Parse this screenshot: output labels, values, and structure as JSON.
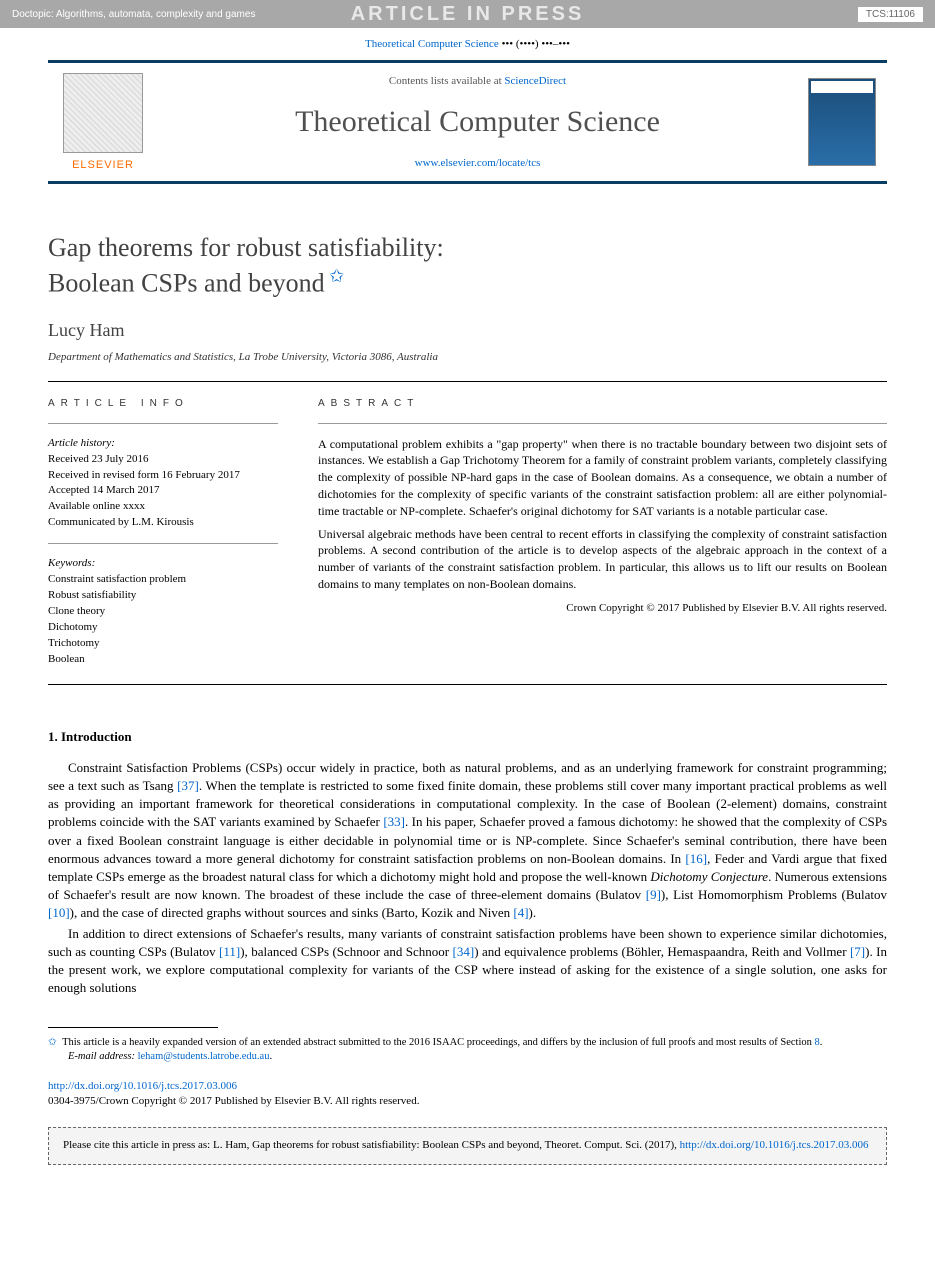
{
  "banner": {
    "doctopic": "Doctopic: Algorithms, automata, complexity and games",
    "aip": "ARTICLE IN PRESS",
    "tcs_id": "TCS:11106"
  },
  "journal_ref": {
    "text_prefix": "Theoretical Computer Science",
    "text_suffix": " ••• (••••) •••–•••"
  },
  "header": {
    "elsevier": "ELSEVIER",
    "contents_prefix": "Contents lists available at ",
    "sciencedirect": "ScienceDirect",
    "journal_title": "Theoretical Computer Science",
    "journal_url": "www.elsevier.com/locate/tcs"
  },
  "article": {
    "title_line1": "Gap theorems for robust satisfiability:",
    "title_line2": "Boolean CSPs and beyond",
    "author": "Lucy Ham",
    "affiliation": "Department of Mathematics and Statistics, La Trobe University, Victoria 3086, Australia"
  },
  "article_info": {
    "label": "ARTICLE INFO",
    "history_heading": "Article history:",
    "received": "Received 23 July 2016",
    "revised": "Received in revised form 16 February 2017",
    "accepted": "Accepted 14 March 2017",
    "online": "Available online xxxx",
    "communicated": "Communicated by L.M. Kirousis",
    "keywords_heading": "Keywords:",
    "keywords": [
      "Constraint satisfaction problem",
      "Robust satisfiability",
      "Clone theory",
      "Dichotomy",
      "Trichotomy",
      "Boolean"
    ]
  },
  "abstract": {
    "label": "ABSTRACT",
    "para1": "A computational problem exhibits a \"gap property\" when there is no tractable boundary between two disjoint sets of instances. We establish a Gap Trichotomy Theorem for a family of constraint problem variants, completely classifying the complexity of possible NP-hard gaps in the case of Boolean domains. As a consequence, we obtain a number of dichotomies for the complexity of specific variants of the constraint satisfaction problem: all are either polynomial-time tractable or NP-complete. Schaefer's original dichotomy for SAT variants is a notable particular case.",
    "para2": "Universal algebraic methods have been central to recent efforts in classifying the complexity of constraint satisfaction problems. A second contribution of the article is to develop aspects of the algebraic approach in the context of a number of variants of the constraint satisfaction problem. In particular, this allows us to lift our results on Boolean domains to many templates on non-Boolean domains.",
    "copyright": "Crown Copyright © 2017 Published by Elsevier B.V. All rights reserved."
  },
  "intro": {
    "heading": "1. Introduction",
    "para1_a": "Constraint Satisfaction Problems (CSPs) occur widely in practice, both as natural problems, and as an underlying framework for constraint programming; see a text such as Tsang ",
    "ref37": "[37]",
    "para1_b": ". When the template is restricted to some fixed finite domain, these problems still cover many important practical problems as well as providing an important framework for theoretical considerations in computational complexity. In the case of Boolean (2-element) domains, constraint problems coincide with the SAT variants examined by Schaefer ",
    "ref33": "[33]",
    "para1_c": ". In his paper, Schaefer proved a famous dichotomy: he showed that the complexity of CSPs over a fixed Boolean constraint language is either decidable in polynomial time or is NP-complete. Since Schaefer's seminal contribution, there have been enormous advances toward a more general dichotomy for constraint satisfaction problems on non-Boolean domains. In ",
    "ref16": "[16]",
    "para1_d": ", Feder and Vardi argue that fixed template CSPs emerge as the broadest natural class for which a dichotomy might hold and propose the well-known ",
    "dichotomy_conj": "Dichotomy Conjecture",
    "para1_e": ". Numerous extensions of Schaefer's result are now known. The broadest of these include the case of three-element domains (Bulatov ",
    "ref9": "[9]",
    "para1_f": "), List Homomorphism Problems (Bulatov ",
    "ref10": "[10]",
    "para1_g": "), and the case of directed graphs without sources and sinks (Barto, Kozik and Niven ",
    "ref4": "[4]",
    "para1_h": ").",
    "para2_a": "In addition to direct extensions of Schaefer's results, many variants of constraint satisfaction problems have been shown to experience similar dichotomies, such as counting CSPs (Bulatov ",
    "ref11": "[11]",
    "para2_b": "), balanced CSPs (Schnoor and Schnoor ",
    "ref34": "[34]",
    "para2_c": ") and equivalence problems (Böhler, Hemaspaandra, Reith and Vollmer ",
    "ref7": "[7]",
    "para2_d": "). In the present work, we explore computational complexity for variants of the CSP where instead of asking for the existence of a single solution, one asks for enough solutions"
  },
  "footnotes": {
    "note_text_a": "This article is a heavily expanded version of an extended abstract submitted to the 2016 ISAAC proceedings, and differs by the inclusion of full proofs and most results of Section ",
    "note_sec": "8",
    "note_tail": ".",
    "email_label": "E-mail address:",
    "email": "leham@students.latrobe.edu.au",
    "email_tail": "."
  },
  "doi": {
    "url": "http://dx.doi.org/10.1016/j.tcs.2017.03.006",
    "issn_line": "0304-3975/Crown Copyright © 2017 Published by Elsevier B.V. All rights reserved."
  },
  "citebox": {
    "text_a": "Please cite this article in press as: L. Ham, Gap theorems for robust satisfiability: Boolean CSPs and beyond, Theoret. Comput. Sci. (2017), ",
    "url": "http://dx.doi.org/10.1016/j.tcs.2017.03.006"
  },
  "colors": {
    "rule": "#0a3d62",
    "link": "#0066cc",
    "banner_bg": "#a8a8a8",
    "elsevier_orange": "#ff6b00"
  }
}
